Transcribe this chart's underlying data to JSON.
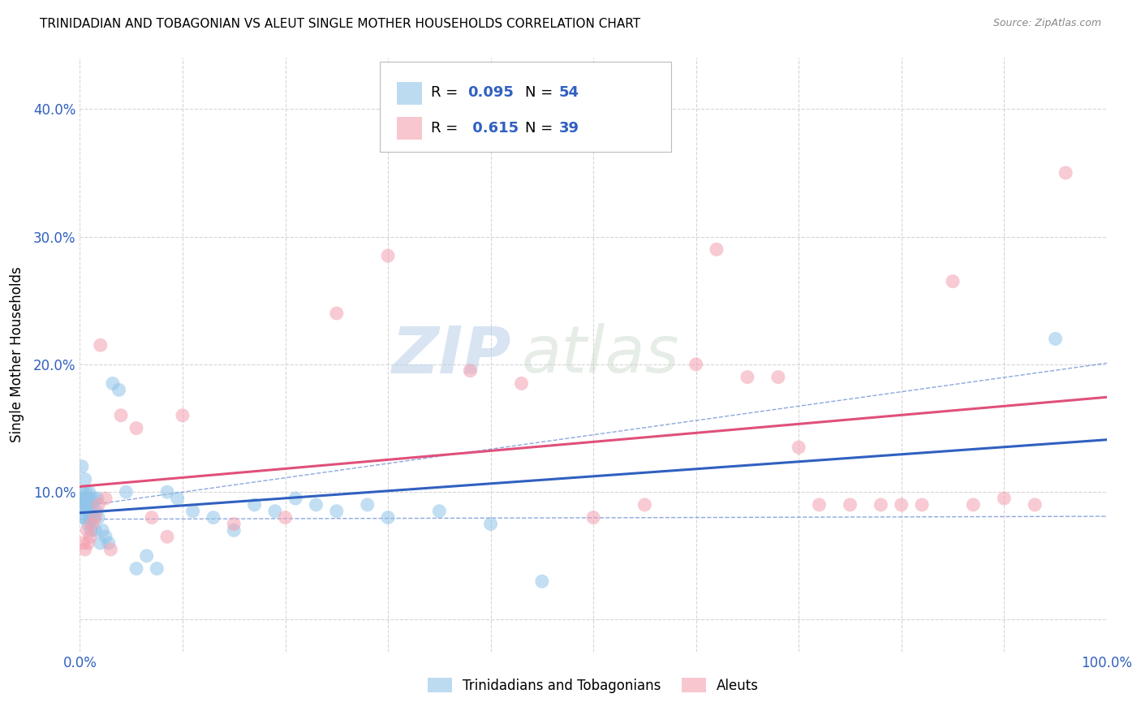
{
  "title": "TRINIDADIAN AND TOBAGONIAN VS ALEUT SINGLE MOTHER HOUSEHOLDS CORRELATION CHART",
  "source": "Source: ZipAtlas.com",
  "ylabel": "Single Mother Households",
  "xlim": [
    0.0,
    1.0
  ],
  "ylim": [
    -0.025,
    0.44
  ],
  "xticks": [
    0.0,
    0.1,
    0.2,
    0.3,
    0.4,
    0.5,
    0.6,
    0.7,
    0.8,
    0.9,
    1.0
  ],
  "yticks": [
    0.0,
    0.1,
    0.2,
    0.3,
    0.4
  ],
  "ytick_labels": [
    "",
    "10.0%",
    "20.0%",
    "30.0%",
    "40.0%"
  ],
  "xtick_labels": [
    "0.0%",
    "",
    "",
    "",
    "",
    "",
    "",
    "",
    "",
    "",
    "100.0%"
  ],
  "blue_color": "#90c4e8",
  "pink_color": "#f4a0b0",
  "blue_line_color": "#3060c0",
  "pink_line_color": "#e0507a",
  "legend_label_blue": "Trinidadians and Tobagonians",
  "legend_label_pink": "Aleuts",
  "watermark_zip": "ZIP",
  "watermark_atlas": "atlas",
  "blue_points_x": [
    0.001,
    0.002,
    0.002,
    0.003,
    0.003,
    0.004,
    0.004,
    0.005,
    0.005,
    0.006,
    0.006,
    0.007,
    0.007,
    0.008,
    0.008,
    0.009,
    0.009,
    0.01,
    0.01,
    0.011,
    0.011,
    0.012,
    0.013,
    0.014,
    0.015,
    0.016,
    0.017,
    0.018,
    0.02,
    0.022,
    0.025,
    0.028,
    0.032,
    0.038,
    0.045,
    0.055,
    0.065,
    0.075,
    0.085,
    0.095,
    0.11,
    0.13,
    0.15,
    0.17,
    0.19,
    0.21,
    0.23,
    0.25,
    0.28,
    0.3,
    0.35,
    0.4,
    0.45,
    0.95
  ],
  "blue_points_y": [
    0.09,
    0.09,
    0.12,
    0.08,
    0.1,
    0.095,
    0.08,
    0.095,
    0.11,
    0.09,
    0.1,
    0.085,
    0.095,
    0.075,
    0.09,
    0.08,
    0.1,
    0.085,
    0.095,
    0.08,
    0.07,
    0.09,
    0.08,
    0.095,
    0.07,
    0.085,
    0.095,
    0.08,
    0.06,
    0.07,
    0.065,
    0.06,
    0.185,
    0.18,
    0.1,
    0.04,
    0.05,
    0.04,
    0.1,
    0.095,
    0.085,
    0.08,
    0.07,
    0.09,
    0.085,
    0.095,
    0.09,
    0.085,
    0.09,
    0.08,
    0.085,
    0.075,
    0.03,
    0.22
  ],
  "pink_points_x": [
    0.003,
    0.005,
    0.007,
    0.008,
    0.01,
    0.012,
    0.015,
    0.018,
    0.02,
    0.025,
    0.03,
    0.04,
    0.055,
    0.07,
    0.085,
    0.1,
    0.15,
    0.2,
    0.25,
    0.3,
    0.38,
    0.43,
    0.5,
    0.55,
    0.6,
    0.62,
    0.65,
    0.68,
    0.7,
    0.72,
    0.75,
    0.78,
    0.8,
    0.82,
    0.85,
    0.87,
    0.9,
    0.93,
    0.96
  ],
  "pink_points_y": [
    0.06,
    0.055,
    0.07,
    0.06,
    0.065,
    0.075,
    0.08,
    0.09,
    0.215,
    0.095,
    0.055,
    0.16,
    0.15,
    0.08,
    0.065,
    0.16,
    0.075,
    0.08,
    0.24,
    0.285,
    0.195,
    0.185,
    0.08,
    0.09,
    0.2,
    0.29,
    0.19,
    0.19,
    0.135,
    0.09,
    0.09,
    0.09,
    0.09,
    0.09,
    0.265,
    0.09,
    0.095,
    0.09,
    0.35
  ]
}
